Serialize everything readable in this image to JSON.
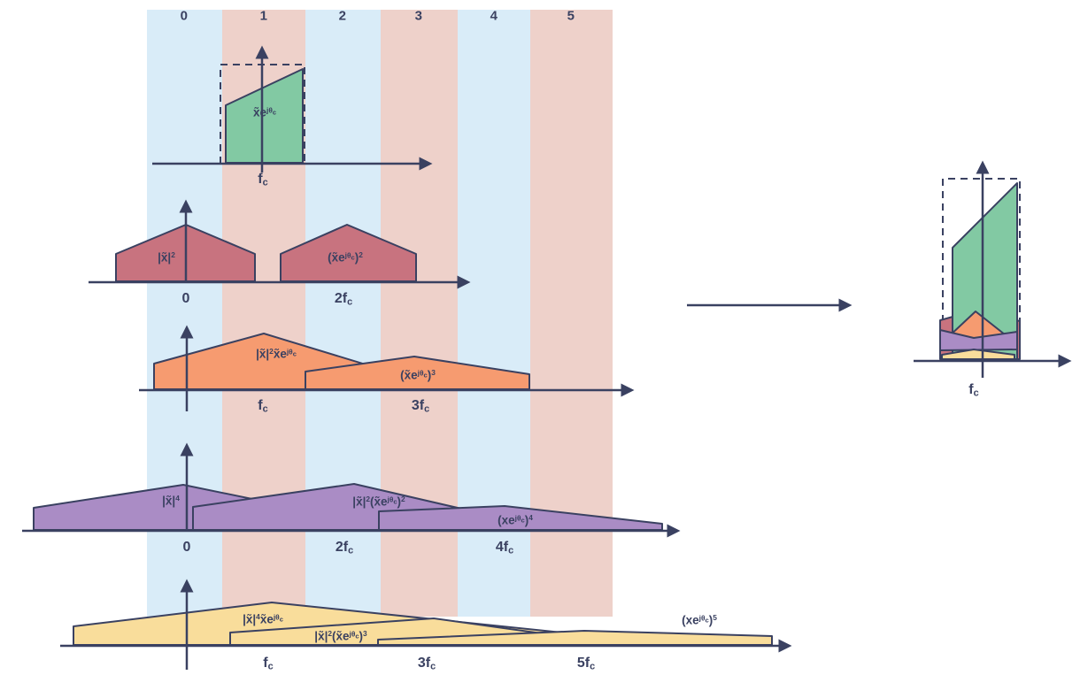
{
  "diagram": {
    "zone_labels": [
      "0",
      "1",
      "2",
      "3",
      "4",
      "5"
    ],
    "plots": [
      {
        "shape_labels": [
          "x̃e^{jθ_{c}}"
        ],
        "tick_labels": [
          "f_{c}"
        ]
      },
      {
        "shape_labels": [
          "|x̃|^{2}",
          "(x̃e^{jθ_{c}})^{2}"
        ],
        "tick_labels": [
          "0",
          "2f_{c}"
        ]
      },
      {
        "shape_labels": [
          "|x̃|^{2}x̃e^{jθ_{c}}",
          "(x̃e^{jθ_{c}})^{3}"
        ],
        "tick_labels": [
          "f_{c}",
          "3f_{c}"
        ]
      },
      {
        "shape_labels": [
          "|x̃|^{4}",
          "|x̃|^{2}(x̃e^{jθ_{c}})^{2}",
          "(xe^{jθ_{c}})^{4}"
        ],
        "tick_labels": [
          "0",
          "2f_{c}",
          "4f_{c}"
        ]
      },
      {
        "shape_labels": [
          "|x̃|^{4}x̃e^{jθ_{c}}",
          "|x̃|^{2}(x̃e^{jθ_{c}})^{3}",
          "(xe^{jθ_{c}})^{5}"
        ],
        "tick_labels": [
          "f_{c}",
          "3f_{c}",
          "5f_{c}"
        ]
      }
    ],
    "result_plot": {
      "tick_labels": [
        "f_{c}"
      ]
    },
    "colors": {
      "ink": "#3a4161",
      "band_blue": "#d9ecf8",
      "band_pink": "#eed1ca",
      "green": "#82c9a3",
      "rose": "#c8737f",
      "orange": "#f69b70",
      "purple": "#aa8cc5",
      "yellow": "#f9dd9b"
    }
  }
}
